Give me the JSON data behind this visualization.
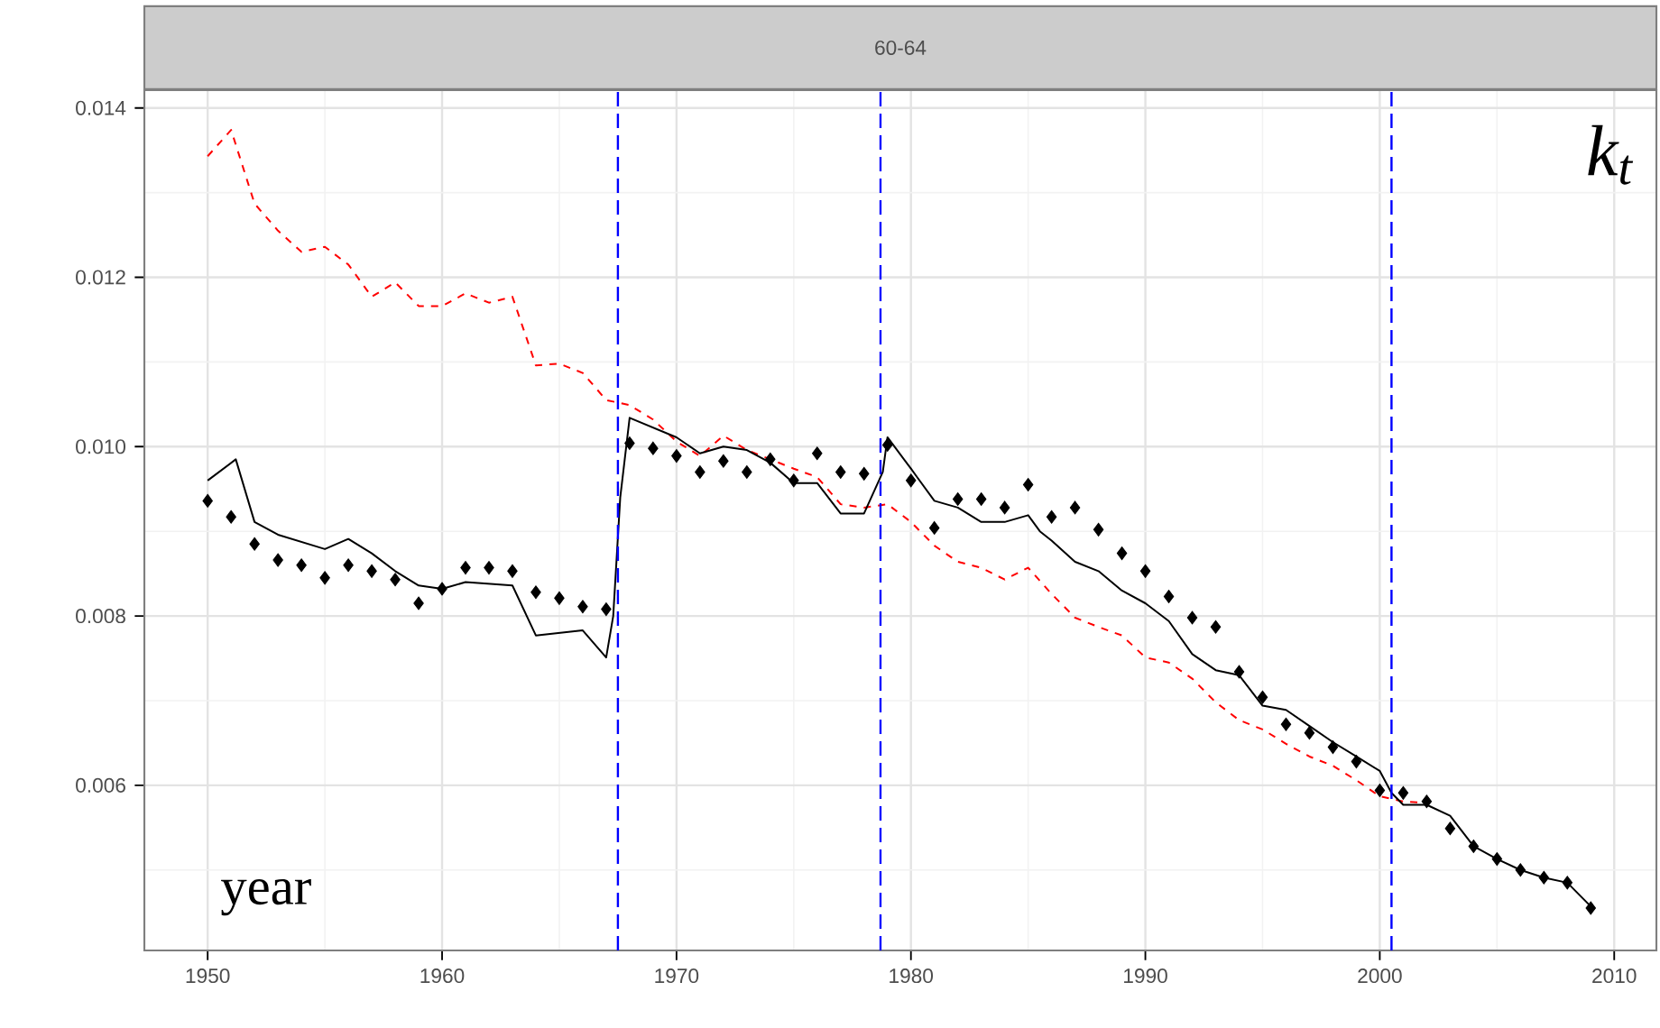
{
  "chart_data": {
    "type": "line",
    "title": "60-64",
    "annotations": [
      "k$_{t}$",
      "year"
    ],
    "x": [
      1950,
      1951,
      1952,
      1953,
      1954,
      1955,
      1956,
      1957,
      1958,
      1959,
      1960,
      1961,
      1962,
      1963,
      1964,
      1965,
      1966,
      1967,
      1968,
      1969,
      1970,
      1971,
      1972,
      1973,
      1974,
      1975,
      1976,
      1977,
      1978,
      1979,
      1980,
      1981,
      1982,
      1983,
      1984,
      1985,
      1986,
      1987,
      1988,
      1989,
      1990,
      1991,
      1992,
      1993,
      1994,
      1995,
      1996,
      1997,
      1998,
      1999,
      2000,
      2001,
      2002,
      2003,
      2004,
      2005,
      2006,
      2007,
      2008,
      2009
    ],
    "series": [
      {
        "color": "#ff0000",
        "line_style": "dashed",
        "x": [
          1950,
          1951,
          1952,
          1953,
          1954,
          1955,
          1956,
          1957,
          1958,
          1959,
          1960,
          1961,
          1962,
          1963,
          1964,
          1965,
          1966,
          1967,
          1968,
          1969,
          1970,
          1971,
          1972,
          1973,
          1974,
          1975,
          1976,
          1977,
          1978,
          1979,
          1980,
          1981,
          1982,
          1983,
          1984,
          1985,
          1986,
          1987,
          1988,
          1989,
          1990,
          1991,
          1992,
          1993,
          1994,
          1995,
          1996,
          1997,
          1998,
          1999,
          2000,
          2001,
          2002
        ],
        "values": [
          0.01343,
          0.01374,
          0.01287,
          0.01255,
          0.0123,
          0.01236,
          0.01215,
          0.01177,
          0.01194,
          0.01166,
          0.01166,
          0.01181,
          0.0117,
          0.01177,
          0.01096,
          0.01098,
          0.01087,
          0.01055,
          0.01049,
          0.01032,
          0.01006,
          0.00989,
          0.01013,
          0.00996,
          0.00985,
          0.00974,
          0.00964,
          0.00932,
          0.00928,
          0.00932,
          0.00911,
          0.00883,
          0.00864,
          0.00857,
          0.00843,
          0.00857,
          0.00826,
          0.00798,
          0.00787,
          0.00777,
          0.00751,
          0.00745,
          0.00726,
          0.00698,
          0.00677,
          0.00666,
          0.00649,
          0.00634,
          0.00623,
          0.00606,
          0.00587,
          0.00581,
          0.00579
        ]
      },
      {
        "color": "#000000",
        "line_style": "solid",
        "x": [
          1950,
          1951.2,
          1952,
          1953,
          1955,
          1956,
          1957,
          1958,
          1959,
          1960,
          1961,
          1963,
          1964,
          1966,
          1967,
          1967.3,
          1967.6,
          1968,
          1970,
          1971,
          1972,
          1973,
          1974,
          1975,
          1976,
          1977,
          1978,
          1978.8,
          1979,
          1980,
          1981,
          1982,
          1983,
          1984,
          1985,
          1985.5,
          1986,
          1987,
          1988,
          1989,
          1990,
          1991,
          1992,
          1993,
          1994,
          1995,
          1996,
          1997,
          1998,
          1999,
          2000,
          2000.5,
          2001,
          2002,
          2003,
          2004,
          2005,
          2006,
          2007,
          2008,
          2009
        ],
        "values": [
          0.0096,
          0.00985,
          0.00911,
          0.00896,
          0.00879,
          0.00891,
          0.00874,
          0.00853,
          0.00836,
          0.00832,
          0.0084,
          0.00836,
          0.00777,
          0.00783,
          0.00751,
          0.008,
          0.0094,
          0.01034,
          0.01011,
          0.00992,
          0.01,
          0.00996,
          0.00981,
          0.00957,
          0.00957,
          0.00921,
          0.00921,
          0.0097,
          0.01011,
          0.00974,
          0.00936,
          0.00928,
          0.00911,
          0.00911,
          0.00919,
          0.009,
          0.00889,
          0.00864,
          0.00853,
          0.0083,
          0.00815,
          0.00794,
          0.00755,
          0.00736,
          0.0073,
          0.00694,
          0.00689,
          0.0067,
          0.00651,
          0.00634,
          0.00617,
          0.00591,
          0.00577,
          0.00577,
          0.00564,
          0.00528,
          0.00513,
          0.005,
          0.00491,
          0.00485,
          0.00457
        ]
      },
      {
        "type": "scatter",
        "color": "#000000",
        "marker": "diamond",
        "values": [
          0.00936,
          0.00917,
          0.00885,
          0.00866,
          0.0086,
          0.00845,
          0.0086,
          0.00853,
          0.00843,
          0.00815,
          0.00832,
          0.00857,
          0.00857,
          0.00853,
          0.00828,
          0.00821,
          0.00811,
          0.00808,
          0.01004,
          0.00998,
          0.00989,
          0.0097,
          0.00983,
          0.0097,
          0.00985,
          0.0096,
          0.00992,
          0.0097,
          0.00968,
          0.01002,
          0.0096,
          0.00904,
          0.00938,
          0.00938,
          0.00928,
          0.00955,
          0.00917,
          0.00928,
          0.00902,
          0.00874,
          0.00853,
          0.00823,
          0.00798,
          0.00787,
          0.00734,
          0.00704,
          0.00672,
          0.00662,
          0.00645,
          0.00628,
          0.00594,
          0.00591,
          0.00581,
          0.00549,
          0.00528,
          0.00513,
          0.005,
          0.00491,
          0.00485,
          0.00455
        ]
      }
    ],
    "xlim": [
      1947.3,
      2011.8
    ],
    "ylim": [
      0.00405,
      0.01421
    ],
    "xticks": [
      1950,
      1960,
      1970,
      1980,
      1990,
      2000,
      2010
    ],
    "yticks": [
      {
        "value": 0.006,
        "label": "0.006"
      },
      {
        "value": 0.008,
        "label": "0.008"
      },
      {
        "value": 0.01,
        "label": "0.010"
      },
      {
        "value": 0.012,
        "label": "0.012"
      },
      {
        "value": 0.014,
        "label": "0.014"
      }
    ],
    "ref_lines": [
      {
        "axis": "x",
        "value": 1967.5,
        "color": "#0000ff",
        "line_style": "dashed"
      },
      {
        "axis": "x",
        "value": 1978.7,
        "color": "#0000ff",
        "line_style": "dashed"
      },
      {
        "axis": "x",
        "value": 2000.5,
        "color": "#0000ff",
        "line_style": "dashed"
      }
    ],
    "grid": true
  }
}
